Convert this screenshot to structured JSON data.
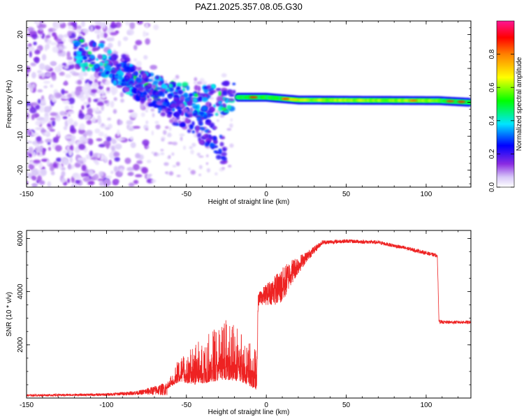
{
  "chart_data": [
    {
      "type": "heatmap",
      "title": "PAZ1.2025.357.08.05.G30",
      "xlabel": "Height of straight line (km)",
      "ylabel": "Frequency (Hz)",
      "xlim": [
        -150,
        128
      ],
      "ylim": [
        -25,
        24
      ],
      "xticks": [
        -150,
        -100,
        -50,
        0,
        50,
        100
      ],
      "yticks": [
        20,
        10,
        0,
        -10,
        -20
      ],
      "colorbar": {
        "label": "Normalized spectral amplitude",
        "range": [
          0,
          1
        ],
        "ticks": [
          "0.0",
          "0.2",
          "0.4",
          "0.6",
          "0.8"
        ],
        "colors": [
          "#ffffff",
          "#8a2be2",
          "#0000ff",
          "#00e5ff",
          "#00ff00",
          "#ffff00",
          "#ff8000",
          "#ff0000",
          "#ff1493"
        ]
      },
      "features": [
        {
          "name": "scattered_noise",
          "x_range": [
            -150,
            -60
          ],
          "freq_range": [
            -25,
            24
          ],
          "amplitude": 0.15
        },
        {
          "name": "descending_ridge",
          "points": [
            [
              -120,
              15
            ],
            [
              -100,
              12
            ],
            [
              -80,
              5
            ],
            [
              -60,
              2
            ],
            [
              -40,
              0
            ],
            [
              -20,
              2
            ]
          ],
          "amplitude": 0.3
        },
        {
          "name": "secondary_ridge",
          "points": [
            [
              -90,
              10
            ],
            [
              -70,
              2
            ],
            [
              -50,
              -5
            ],
            [
              -35,
              -10
            ],
            [
              -25,
              -15
            ]
          ],
          "amplitude": 0.2
        },
        {
          "name": "stable_band",
          "points": [
            [
              -18,
              1.5
            ],
            [
              0,
              1.5
            ],
            [
              20,
              0.7
            ],
            [
              60,
              0.6
            ],
            [
              108,
              0.5
            ],
            [
              128,
              0
            ]
          ],
          "amplitude": 0.75
        }
      ]
    },
    {
      "type": "line",
      "xlabel": "Height of straight line (km)",
      "ylabel": "SNR (10 * v/v)",
      "xlim": [
        -150,
        128
      ],
      "ylim": [
        0,
        6300
      ],
      "xticks": [
        -150,
        -100,
        -50,
        0,
        50,
        100
      ],
      "yticks": [
        2000,
        4000,
        6000
      ],
      "color": "#ee2222",
      "envelope": {
        "x": [
          -150,
          -100,
          -80,
          -62,
          -55,
          -45,
          -35,
          -25,
          -15,
          -6,
          -5,
          0,
          10,
          15,
          25,
          35,
          50,
          70,
          90,
          107,
          108,
          110,
          128
        ],
        "base": [
          100,
          130,
          200,
          350,
          600,
          500,
          600,
          700,
          600,
          300,
          3700,
          3900,
          4200,
          4700,
          5300,
          5850,
          5900,
          5850,
          5600,
          5350,
          2900,
          2850,
          2850
        ],
        "noise": [
          40,
          50,
          80,
          250,
          900,
          1500,
          2000,
          2300,
          2000,
          1500,
          250,
          400,
          700,
          500,
          200,
          80,
          70,
          70,
          70,
          70,
          80,
          60,
          60
        ]
      }
    }
  ]
}
